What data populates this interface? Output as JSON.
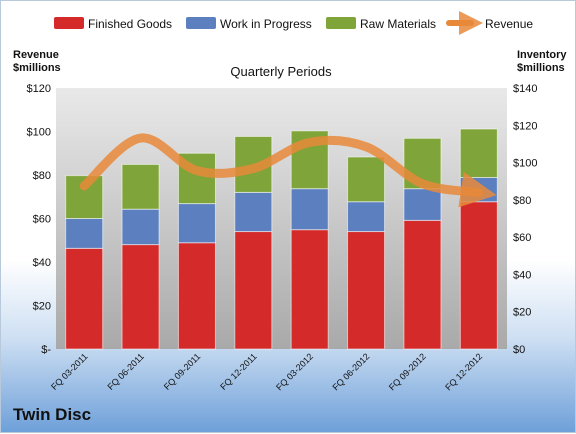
{
  "company": "Twin Disc",
  "chart_data": {
    "type": "bar",
    "stacked": true,
    "title": "Quarterly Periods",
    "categories": [
      "FQ 03-2011",
      "FQ 06-2011",
      "FQ 09-2011",
      "FQ 12-2011",
      "FQ 03-2012",
      "FQ 06-2012",
      "FQ 09-2012",
      "FQ 12-2012"
    ],
    "left_axis": {
      "label_line1": "Revenue",
      "label_line2": "$millions",
      "range": [
        0,
        120
      ],
      "ticks": [
        "$-",
        "$20",
        "$40",
        "$60",
        "$80",
        "$100",
        "$120"
      ]
    },
    "right_axis": {
      "label_line1": "Inventory",
      "label_line2": "$millions",
      "range": [
        0,
        140
      ],
      "ticks": [
        "$0",
        "$20",
        "$40",
        "$60",
        "$80",
        "$100",
        "$120",
        "$140"
      ]
    },
    "series": [
      {
        "name": "Finished Goods",
        "color": "#d42a2a",
        "axis": "right",
        "values": [
          54,
          56,
          57,
          63,
          64,
          63,
          69,
          79
        ]
      },
      {
        "name": "Work in Progress",
        "color": "#5b7fbf",
        "axis": "right",
        "values": [
          16,
          19,
          21,
          21,
          22,
          16,
          17,
          13
        ]
      },
      {
        "name": "Raw Materials",
        "color": "#7fa43a",
        "axis": "right",
        "values": [
          23,
          24,
          27,
          30,
          31,
          24,
          27,
          26
        ]
      }
    ],
    "line": {
      "name": "Revenue",
      "color": "#e8893a",
      "axis": "left",
      "values": [
        75,
        97,
        82,
        83,
        95,
        93,
        76,
        72
      ]
    },
    "grid": false,
    "legend_position": "top"
  }
}
